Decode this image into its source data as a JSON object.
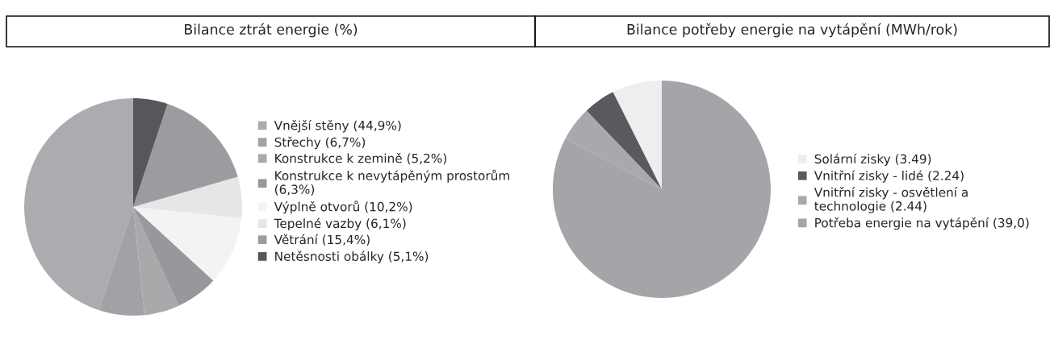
{
  "chart_data": [
    {
      "type": "pie",
      "title": "Bilance ztrát energie (%)",
      "legend": "right",
      "categories": [
        "Vnější stěny (44,9%)",
        "Střechy (6,7%)",
        "Konstrukce k zemině (5,2%)",
        "Konstrukce k nevytápěným prostorům\n(6,3%)",
        "Výplně otvorů (10,2%)",
        "Tepelné vazby (6,1%)",
        "Větrání (15,4%)",
        "Netěsnosti obálky (5,1%)"
      ],
      "values": [
        44.9,
        6.7,
        5.2,
        6.3,
        10.2,
        6.1,
        15.4,
        5.1
      ],
      "colors": [
        "#abacb0",
        "#a2a2a6",
        "#a9a9ab",
        "#98989c",
        "#f3f3f3",
        "#e6e6e6",
        "#9c9ca0",
        "#57575b"
      ]
    },
    {
      "type": "pie",
      "title": "Bilance potřeby energie na vytápění (MWh/rok)",
      "legend": "right",
      "categories": [
        "Solární zisky (3.49)",
        "Vnitřní zisky - lidé (2.24)",
        "Vnitřní zisky - osvětlení a\ntechnologie (2.44)",
        "Potřeba energie na vytápění (39,0)"
      ],
      "values": [
        3.49,
        2.24,
        2.44,
        39.0
      ],
      "colors": [
        "#eeeeee",
        "#5a5a5e",
        "#a9a9ad",
        "#a5a5a9"
      ]
    }
  ]
}
